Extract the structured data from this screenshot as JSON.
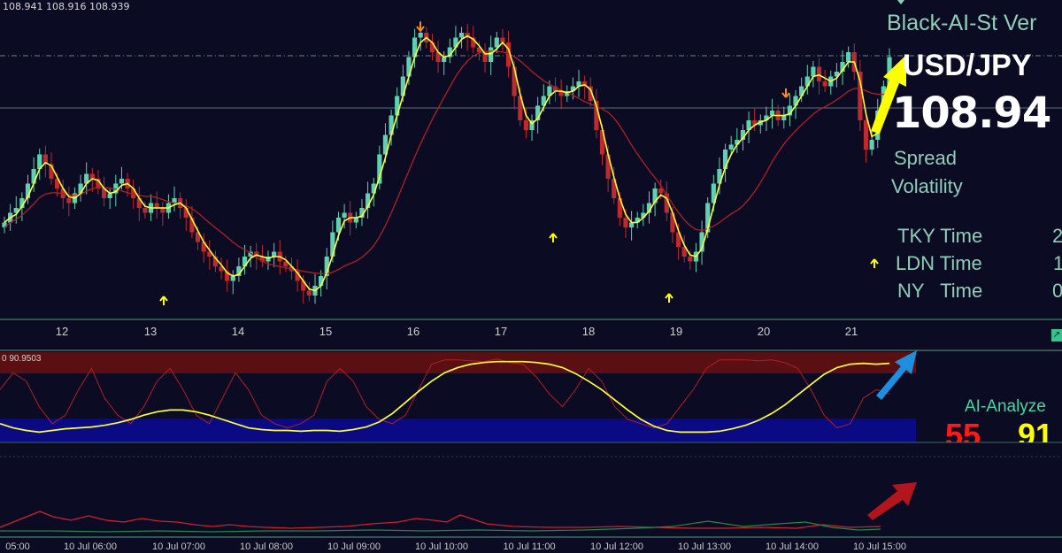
{
  "header": {
    "quotes": "108.941 108.916 108.939"
  },
  "panel": {
    "brand": "Black-AI-St Ver",
    "symbol": "USD/JPY",
    "price": "108.94",
    "spread_label": "Spread",
    "volatility_label": "Volatility",
    "sessions": [
      {
        "label": "TKY Time",
        "value": "2"
      },
      {
        "label": "LDN Time",
        "value": "1"
      },
      {
        "label": "NY   Time",
        "value": "0"
      }
    ]
  },
  "oscillator": {
    "value_label": "0 90.9503",
    "analyze_label": "AI-Analyze",
    "score_red": "55",
    "score_yellow": "91"
  },
  "day_axis": [
    "12",
    "13",
    "14",
    "15",
    "16",
    "17",
    "18",
    "19",
    "20",
    "21"
  ],
  "time_axis": [
    "05:00",
    "10 Jul 06:00",
    "10 Jul 07:00",
    "10 Jul 08:00",
    "10 Jul 09:00",
    "10 Jul 10:00",
    "10 Jul 11:00",
    "10 Jul 12:00",
    "10 Jul 13:00",
    "10 Jul 14:00",
    "10 Jul 15:00"
  ],
  "colors": {
    "background": "#0b0b23",
    "bull": "#5fd1b0",
    "bear": "#c0292d",
    "fast_ma": "#ffff33",
    "slow_ma": "#b01f26",
    "overbought_zone": "#5a0f12",
    "oversold_zone": "#0a0a85",
    "buy_arrow": "#ffff00",
    "sell_arrow": "#ff8a1c"
  },
  "chart_data": {
    "type": "candlestick",
    "symbol": "USD/JPY",
    "ylim": [
      108.55,
      109.15
    ],
    "yellow_price": 108.94,
    "closes": [
      108.72,
      108.74,
      108.75,
      108.77,
      108.8,
      108.83,
      108.86,
      108.84,
      108.81,
      108.79,
      108.77,
      108.76,
      108.78,
      108.8,
      108.82,
      108.81,
      108.79,
      108.77,
      108.78,
      108.8,
      108.81,
      108.79,
      108.77,
      108.75,
      108.74,
      108.76,
      108.75,
      108.74,
      108.76,
      108.77,
      108.75,
      108.73,
      108.7,
      108.68,
      108.66,
      108.65,
      108.63,
      108.62,
      108.6,
      108.61,
      108.63,
      108.65,
      108.66,
      108.65,
      108.64,
      108.65,
      108.66,
      108.64,
      108.63,
      108.62,
      108.6,
      108.58,
      108.57,
      108.59,
      108.61,
      108.65,
      108.7,
      108.73,
      108.74,
      108.72,
      108.73,
      108.75,
      108.78,
      108.8,
      108.86,
      108.9,
      108.94,
      108.98,
      109.02,
      109.06,
      109.1,
      109.11,
      109.09,
      109.07,
      109.05,
      109.06,
      109.08,
      109.1,
      109.11,
      109.1,
      109.08,
      109.07,
      109.05,
      109.08,
      109.1,
      109.09,
      109.04,
      108.98,
      108.93,
      108.91,
      108.93,
      108.96,
      108.98,
      109.0,
      108.99,
      108.98,
      108.99,
      109.0,
      109.01,
      109.0,
      108.97,
      108.91,
      108.86,
      108.81,
      108.77,
      108.73,
      108.71,
      108.72,
      108.73,
      108.74,
      108.76,
      108.79,
      108.78,
      108.74,
      108.7,
      108.67,
      108.65,
      108.64,
      108.66,
      108.7,
      108.76,
      108.8,
      108.83,
      108.87,
      108.88,
      108.89,
      108.91,
      108.93,
      108.92,
      108.93,
      108.94,
      108.95,
      108.93,
      108.94,
      108.96,
      108.98,
      109.0,
      109.02,
      109.04,
      109.01,
      109.0,
      109.02,
      109.03,
      109.05,
      109.07,
      109.03,
      108.93,
      108.87,
      108.89,
      108.95,
      109.0,
      109.06
    ],
    "osc_yellow": [
      20,
      15,
      12,
      10,
      12,
      14,
      15,
      16,
      18,
      21,
      25,
      30,
      34,
      36,
      36,
      34,
      30,
      25,
      20,
      15,
      13,
      12,
      12,
      11,
      12,
      12,
      11,
      13,
      16,
      22,
      32,
      45,
      58,
      70,
      80,
      86,
      90,
      92,
      93,
      93,
      93,
      92,
      90,
      86,
      79,
      70,
      60,
      48,
      36,
      25,
      17,
      12,
      10,
      10,
      10,
      11,
      14,
      18,
      24,
      32,
      42,
      54,
      66,
      78,
      86,
      90,
      91,
      90,
      91
    ],
    "osc_red": [
      60,
      80,
      70,
      40,
      20,
      30,
      60,
      85,
      50,
      30,
      20,
      40,
      70,
      85,
      60,
      30,
      20,
      50,
      80,
      60,
      30,
      20,
      15,
      20,
      30,
      70,
      85,
      70,
      40,
      25,
      20,
      30,
      60,
      90,
      95,
      95,
      94,
      93,
      96,
      92,
      90,
      75,
      55,
      40,
      60,
      85,
      70,
      40,
      25,
      20,
      15,
      20,
      40,
      60,
      85,
      95,
      95,
      95,
      94,
      95,
      92,
      85,
      60,
      30,
      15,
      20,
      50,
      60,
      55
    ],
    "osc_levels": {
      "upper": 90.9503,
      "lower": 12
    }
  }
}
